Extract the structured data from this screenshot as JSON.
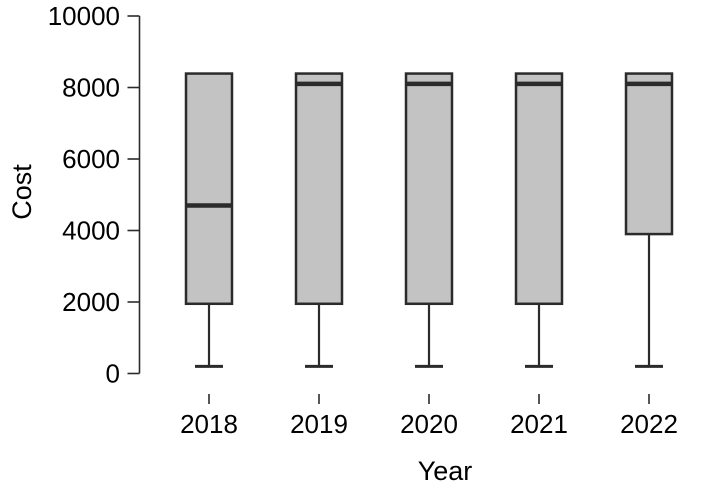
{
  "chart_data": {
    "type": "boxplot",
    "title": "",
    "xlabel": "Year",
    "ylabel": "Cost",
    "categories": [
      "2018",
      "2019",
      "2020",
      "2021",
      "2022"
    ],
    "ylim": [
      0,
      10000
    ],
    "yticks": [
      0,
      2000,
      4000,
      6000,
      8000,
      10000
    ],
    "grid": false,
    "legend": false,
    "series": [
      {
        "category": "2018",
        "min": 200,
        "q1": 1950,
        "median": 4700,
        "q3": 8390,
        "max": 8390
      },
      {
        "category": "2019",
        "min": 200,
        "q1": 1950,
        "median": 8100,
        "q3": 8390,
        "max": 8390
      },
      {
        "category": "2020",
        "min": 200,
        "q1": 1950,
        "median": 8100,
        "q3": 8390,
        "max": 8390
      },
      {
        "category": "2021",
        "min": 200,
        "q1": 1950,
        "median": 8100,
        "q3": 8390,
        "max": 8390
      },
      {
        "category": "2022",
        "min": 200,
        "q1": 3900,
        "median": 8100,
        "q3": 8390,
        "max": 8390
      }
    ],
    "colors": {
      "box_fill": "#c3c3c3",
      "box_border": "#2b2b2b",
      "median_line": "#2b2b2b",
      "whisker": "#2b2b2b",
      "axis": "#2b2b2b",
      "text": "#000000",
      "background": "#ffffff"
    }
  }
}
